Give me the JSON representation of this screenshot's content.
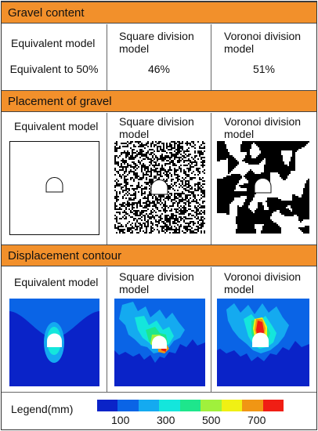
{
  "sections": {
    "gravel_content": "Gravel content",
    "placement": "Placement of gravel",
    "displacement": "Displacement contour"
  },
  "models": {
    "equivalent": "Equivalent model",
    "square": "Square division\nmodel",
    "voronoi": "Voronoi division\nmodel"
  },
  "content_values": {
    "equivalent": "Equivalent to 50%",
    "square": "46%",
    "voronoi": "51%"
  },
  "legend": {
    "label": "Legend(mm)",
    "ticks": [
      "100",
      "300",
      "500",
      "700"
    ],
    "colors": [
      "#0a23c8",
      "#0a64e6",
      "#14aaf0",
      "#14e6dc",
      "#1ee68c",
      "#a0f03c",
      "#f0f014",
      "#f09614",
      "#f01e14"
    ]
  }
}
